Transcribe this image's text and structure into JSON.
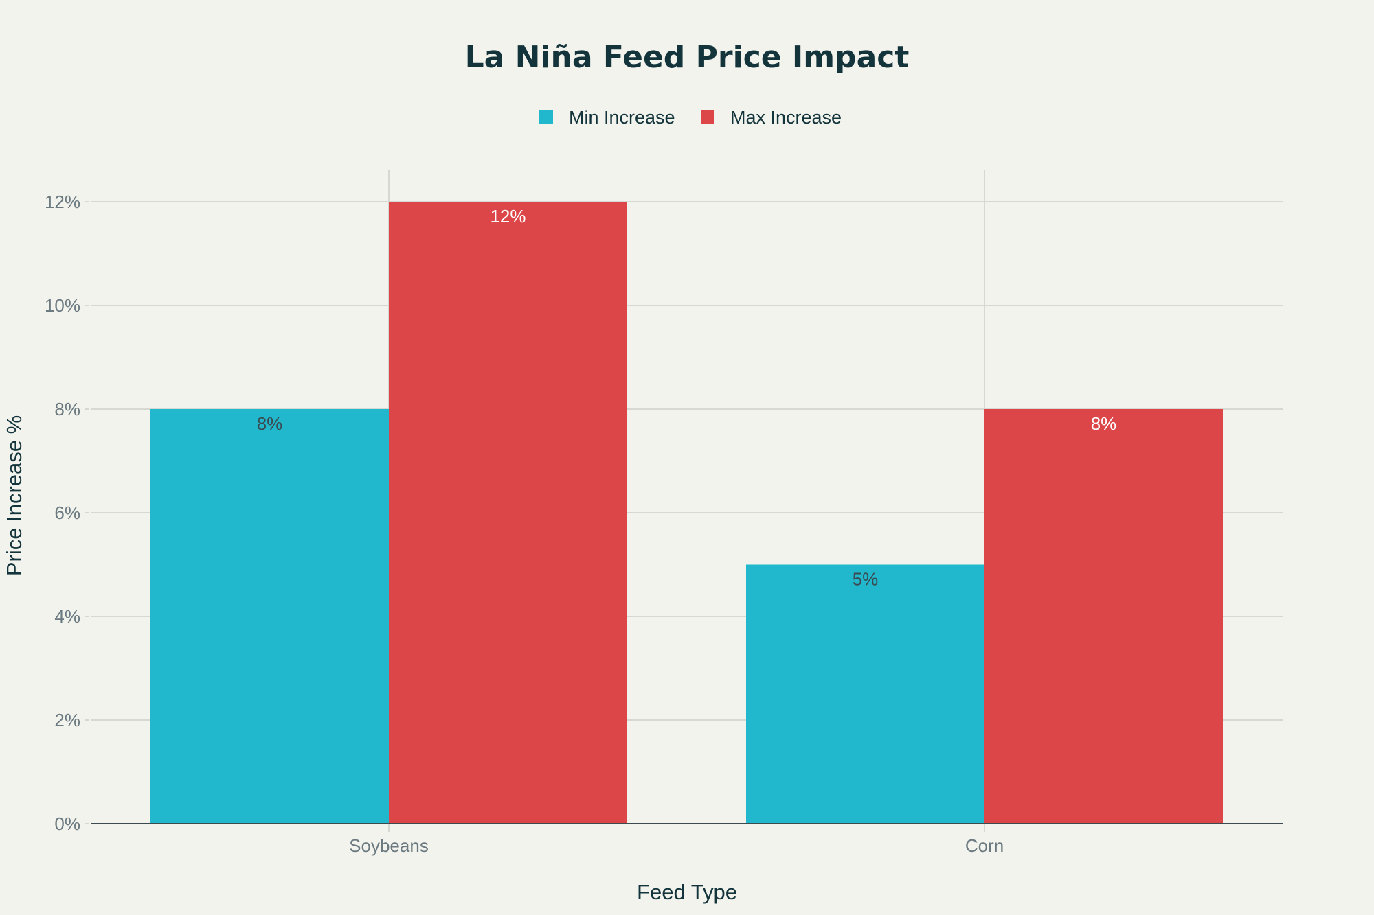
{
  "chart_data": {
    "type": "bar",
    "title": "La Niña Feed Price Impact",
    "xlabel": "Feed Type",
    "ylabel": "Price Increase %",
    "categories": [
      "Soybeans",
      "Corn"
    ],
    "series": [
      {
        "name": "Min Increase",
        "color": "#21b8cd",
        "values": [
          8,
          5
        ],
        "labels": [
          "8%",
          "5%"
        ],
        "label_color": "#3a4a50"
      },
      {
        "name": "Max Increase",
        "color": "#dc4648",
        "values": [
          12,
          8
        ],
        "labels": [
          "12%",
          "8%"
        ],
        "label_color": "#ffffff"
      }
    ],
    "ylim": [
      0,
      12
    ],
    "yticks": [
      0,
      2,
      4,
      6,
      8,
      10,
      12
    ],
    "ytick_labels": [
      "0%",
      "2%",
      "4%",
      "6%",
      "8%",
      "10%",
      "12%"
    ],
    "grid": true,
    "legend_position": "top-center"
  }
}
